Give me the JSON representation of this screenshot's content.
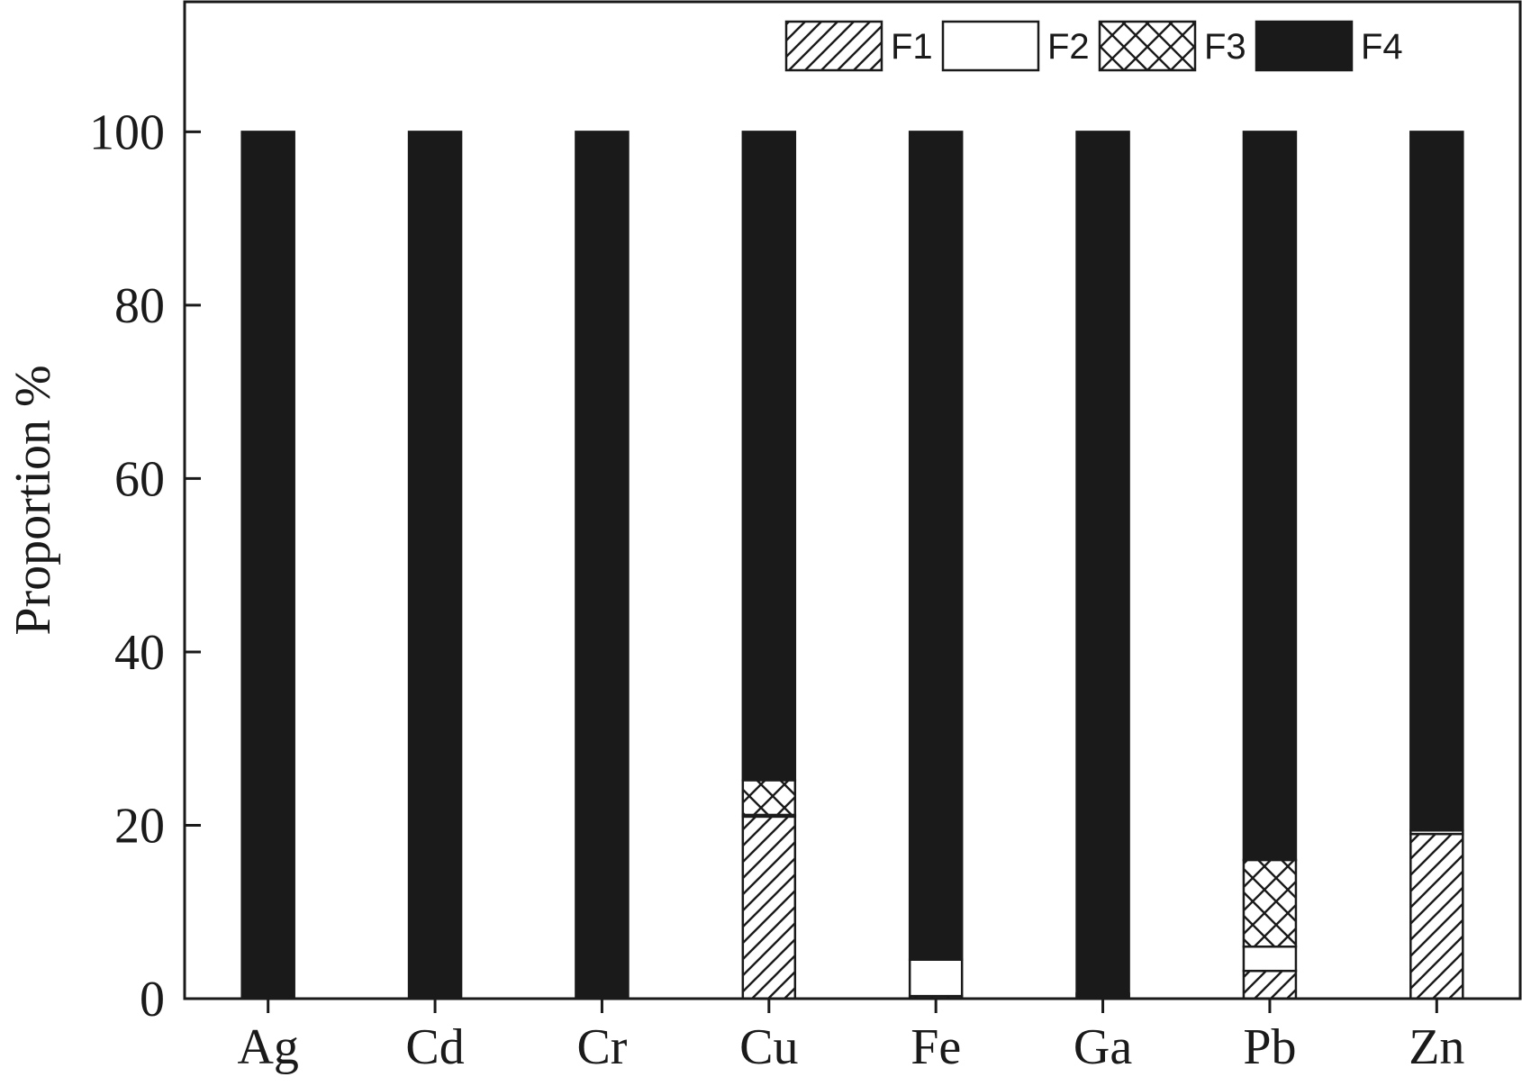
{
  "chart_data": {
    "type": "bar",
    "stacked": true,
    "title": "",
    "xlabel": "",
    "ylabel": "Proportion %",
    "ylim": [
      0,
      115
    ],
    "yticks": [
      0,
      20,
      40,
      60,
      80,
      100
    ],
    "grid": false,
    "legend_position": "top-right",
    "categories": [
      "Ag",
      "Cd",
      "Cr",
      "Cu",
      "Fe",
      "Ga",
      "Pb",
      "Zn"
    ],
    "series": [
      {
        "name": "F1",
        "pattern": "diagonal-hatch",
        "values": [
          0,
          0,
          0,
          21,
          0.3,
          0.2,
          3.2,
          19
        ]
      },
      {
        "name": "F2",
        "pattern": "white",
        "values": [
          0,
          0,
          0,
          0.2,
          4.2,
          0.2,
          2.8,
          0.4
        ]
      },
      {
        "name": "F3",
        "pattern": "cross-hatch",
        "values": [
          0,
          0,
          0,
          4,
          0,
          0.2,
          10,
          0
        ]
      },
      {
        "name": "F4",
        "pattern": "solid-black",
        "values": [
          100,
          100,
          100,
          74.8,
          95.5,
          99.4,
          84,
          80.6
        ]
      }
    ],
    "colors": {
      "ink": "#1a1a1a",
      "fill_light": "#ffffff"
    }
  }
}
